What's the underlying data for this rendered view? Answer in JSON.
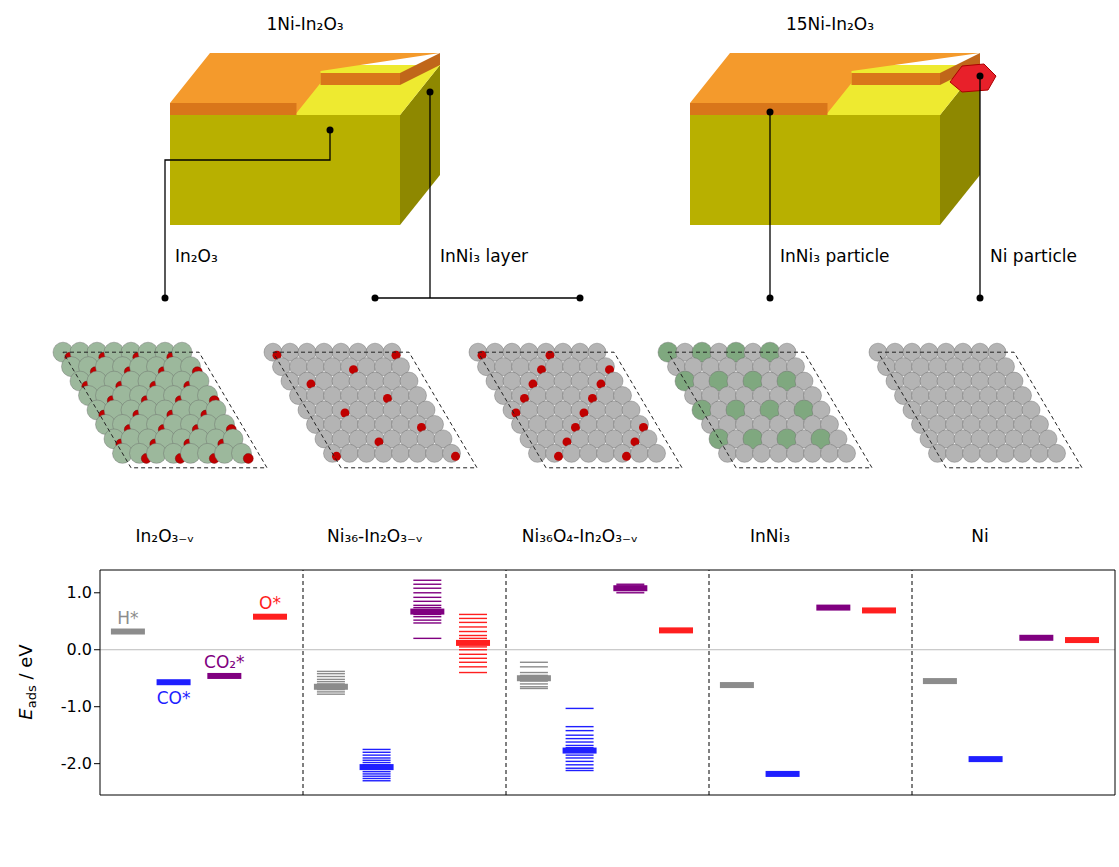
{
  "chart_data": {
    "type": "scatter",
    "marker": "hline",
    "ylabel": "Eads / eV",
    "ylim": [
      -2.55,
      1.4
    ],
    "yticks": [
      {
        "value": -2,
        "label": "-2.0"
      },
      {
        "value": -1,
        "label": "-1.0"
      },
      {
        "value": 0,
        "label": "0.0"
      },
      {
        "value": 1,
        "label": "1.0"
      }
    ],
    "tick_labels": "y",
    "species": [
      {
        "name": "H*",
        "color": "#8c8c8c"
      },
      {
        "name": "CO*",
        "color": "#1f1fff"
      },
      {
        "name": "CO₂*",
        "color": "#800080"
      },
      {
        "name": "O*",
        "color": "#ff1f1f"
      }
    ],
    "surfaces": [
      {
        "name": "In₂O₃₋ᵥ",
        "values": [
          0.32,
          -0.57,
          -0.46,
          0.58
        ],
        "configurations": [
          [],
          [],
          [],
          []
        ]
      },
      {
        "name": "Ni₃₆-In₂O₃₋ᵥ",
        "values": [
          -0.65,
          -2.06,
          0.67,
          0.12
        ],
        "configurations": [
          [
            -0.38,
            -0.42,
            -0.47,
            -0.52,
            -0.56,
            -0.6,
            -0.63,
            -0.68,
            -0.7,
            -0.74,
            -0.78
          ],
          [
            -1.75,
            -1.8,
            -1.85,
            -1.9,
            -1.94,
            -1.98,
            -2.02,
            -2.04,
            -2.08,
            -2.1,
            -2.14,
            -2.18,
            -2.22,
            -2.26,
            -2.3
          ],
          [
            0.2,
            0.47,
            0.52,
            0.58,
            0.62,
            0.66,
            0.7,
            0.74,
            0.78,
            0.85,
            0.92,
            1.0,
            1.08,
            1.15,
            1.22
          ],
          [
            -0.4,
            -0.3,
            -0.22,
            -0.15,
            -0.08,
            0.0,
            0.05,
            0.1,
            0.15,
            0.2,
            0.25,
            0.32,
            0.4,
            0.48,
            0.55,
            0.62
          ]
        ]
      },
      {
        "name": "Ni₃₆O₄-In₂O₃₋ᵥ",
        "values": [
          -0.5,
          -1.77,
          1.08,
          0.34
        ],
        "configurations": [
          [
            -0.22,
            -0.3,
            -0.4,
            -0.45,
            -0.5,
            -0.55,
            -0.6,
            -0.65,
            -0.68
          ],
          [
            -1.03,
            -1.35,
            -1.42,
            -1.5,
            -1.56,
            -1.62,
            -1.68,
            -1.72,
            -1.8,
            -1.85,
            -1.9,
            -1.96,
            -2.02,
            -2.08,
            -2.12
          ],
          [
            1.0,
            1.04,
            1.08,
            1.12,
            1.15
          ],
          []
        ]
      },
      {
        "name": "InNi₃",
        "values": [
          -0.62,
          -2.18,
          0.74,
          0.69
        ],
        "configurations": [
          [],
          [],
          [],
          []
        ]
      },
      {
        "name": "Ni",
        "values": [
          -0.55,
          -1.92,
          0.21,
          0.17
        ],
        "configurations": [
          [],
          [],
          [],
          []
        ]
      }
    ]
  },
  "diagram": {
    "catalysts": [
      {
        "name": "1Ni-In₂O₃",
        "parts": [
          {
            "label": "In₂O₃",
            "models": [
              0
            ]
          },
          {
            "label": "InNi₃ layer",
            "models": [
              1,
              2
            ]
          }
        ]
      },
      {
        "name": "15Ni-In₂O₃",
        "parts": [
          {
            "label": "InNi₃ particle",
            "models": [
              3
            ]
          },
          {
            "label": "Ni particle",
            "models": [
              4
            ]
          }
        ]
      }
    ]
  }
}
